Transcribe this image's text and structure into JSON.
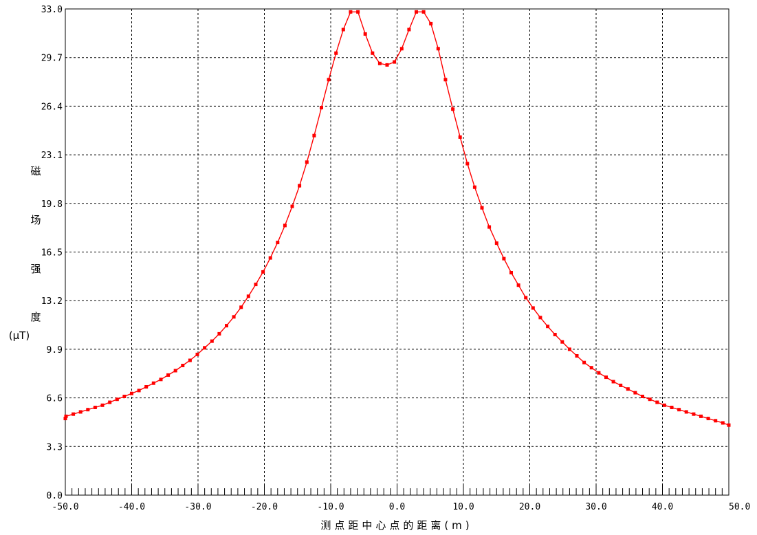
{
  "chart_data": {
    "type": "line",
    "title": "",
    "xlabel": "测点距中心点的距离(m)",
    "ylabel": [
      "磁",
      "场",
      "强",
      "度",
      "(μT)"
    ],
    "xlim": [
      -50,
      50
    ],
    "ylim": [
      0,
      33
    ],
    "x_ticks": [
      "-50.0",
      "-40.0",
      "-30.0",
      "-20.0",
      "-10.0",
      "0.0",
      "10.0",
      "20.0",
      "30.0",
      "40.0",
      "50.0"
    ],
    "y_ticks": [
      "0.0",
      "3.3",
      "6.6",
      "9.9",
      "13.2",
      "16.5",
      "19.8",
      "23.1",
      "26.4",
      "29.7",
      "33.0"
    ],
    "grid": true,
    "series": [
      {
        "color": "#ff0000",
        "x": [
          -51.0,
          -49.9,
          -48.8,
          -47.7,
          -46.6,
          -45.5,
          -44.4,
          -43.3,
          -42.2,
          -41.1,
          -40.0,
          -38.9,
          -37.8,
          -36.7,
          -35.6,
          -34.5,
          -33.4,
          -32.3,
          -31.2,
          -30.1,
          -29.0,
          -27.9,
          -26.8,
          -25.7,
          -24.6,
          -23.5,
          -22.4,
          -21.3,
          -20.2,
          -19.1,
          -18.0,
          -16.9,
          -15.8,
          -14.7,
          -13.6,
          -12.5,
          -11.4,
          -10.3,
          -9.2,
          -8.1,
          -7.0,
          -5.9,
          -4.8,
          -3.7,
          -2.6,
          -1.5,
          -0.4,
          0.7,
          1.8,
          2.9,
          4.0,
          5.1,
          6.2,
          7.3,
          8.4,
          9.5,
          10.6,
          11.7,
          12.8,
          13.9,
          15.0,
          16.1,
          17.2,
          18.3,
          19.4,
          20.5,
          21.6,
          22.7,
          23.8,
          24.9,
          26.0,
          27.1,
          28.2,
          29.3,
          30.4,
          31.5,
          32.6,
          33.7,
          34.8,
          35.9,
          37.0,
          38.1,
          39.2,
          40.3,
          41.4,
          42.5,
          43.6,
          44.7,
          45.8,
          46.9,
          48.0,
          49.1,
          50.2
        ],
        "y": [
          5.2,
          5.35,
          5.5,
          5.65,
          5.8,
          5.95,
          6.1,
          6.3,
          6.5,
          6.7,
          6.9,
          7.1,
          7.35,
          7.6,
          7.85,
          8.15,
          8.45,
          8.8,
          9.15,
          9.55,
          10.0,
          10.45,
          10.95,
          11.5,
          12.1,
          12.75,
          13.5,
          14.3,
          15.15,
          16.1,
          17.15,
          18.3,
          19.6,
          21.0,
          22.6,
          24.4,
          26.3,
          28.2,
          30.0,
          31.6,
          32.8,
          32.8,
          31.3,
          30.0,
          29.3,
          29.2,
          29.4,
          30.3,
          31.6,
          32.8,
          32.8,
          32.0,
          30.3,
          28.2,
          26.2,
          24.3,
          22.5,
          20.9,
          19.5,
          18.2,
          17.1,
          16.05,
          15.1,
          14.25,
          13.4,
          12.7,
          12.05,
          11.45,
          10.9,
          10.4,
          9.9,
          9.45,
          9.0,
          8.65,
          8.3,
          8.0,
          7.7,
          7.45,
          7.2,
          6.95,
          6.7,
          6.5,
          6.3,
          6.1,
          5.95,
          5.8,
          5.65,
          5.5,
          5.35,
          5.2,
          5.05,
          4.9,
          4.75
        ]
      }
    ]
  }
}
